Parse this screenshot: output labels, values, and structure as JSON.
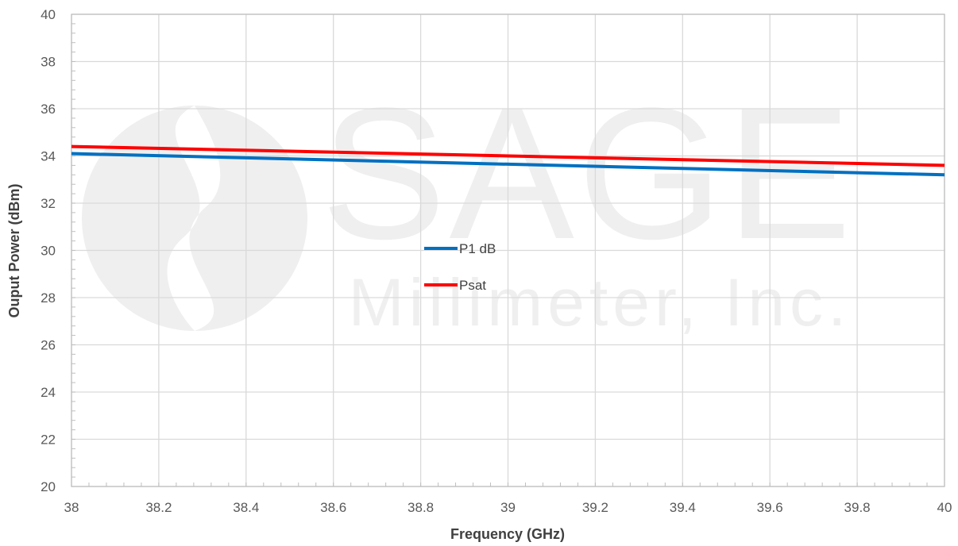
{
  "chart_data": {
    "type": "line",
    "title": "",
    "xlabel": "Frequency (GHz)",
    "ylabel": "Ouput Power (dBm)",
    "xlim": [
      38,
      40
    ],
    "ylim": [
      20,
      40
    ],
    "xticks": [
      38,
      38.2,
      38.4,
      38.6,
      38.8,
      39,
      39.2,
      39.4,
      39.6,
      39.8,
      40
    ],
    "yticks": [
      20,
      22,
      24,
      26,
      28,
      30,
      32,
      34,
      36,
      38,
      40
    ],
    "grid": true,
    "legend_position": "center",
    "series": [
      {
        "name": "P1 dB",
        "color": "#0070C0",
        "x": [
          38,
          40
        ],
        "y": [
          34.1,
          33.2
        ]
      },
      {
        "name": "Psat",
        "color": "#FF0000",
        "x": [
          38,
          40
        ],
        "y": [
          34.4,
          33.6
        ]
      }
    ]
  },
  "watermark": {
    "logo_text": "SAGE",
    "company_text": "Millimeter, Inc.",
    "logo_icon": "sage-swirl-logo",
    "color": "#efefef"
  },
  "colors": {
    "grid": "#d9d9d9",
    "axis": "#bfbfbf",
    "text": "#595959"
  }
}
